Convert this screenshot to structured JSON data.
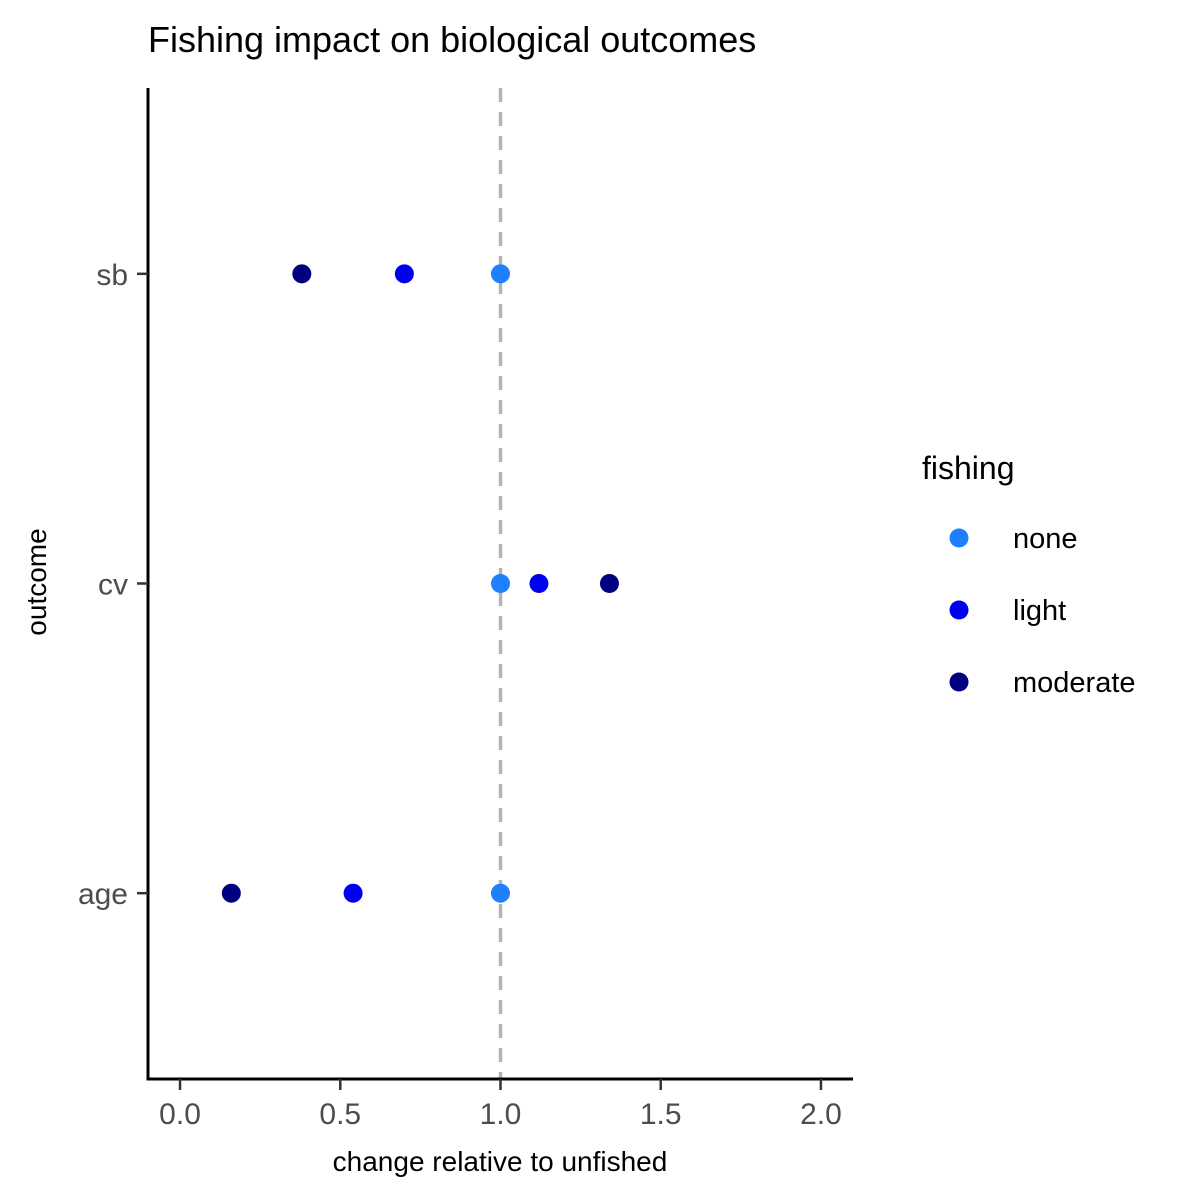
{
  "chart_data": {
    "type": "scatter",
    "title": "Fishing impact on biological outcomes",
    "xlabel": "change relative to unfished",
    "ylabel": "outcome",
    "xlim": [
      -0.1,
      2.1
    ],
    "xticks": [
      0.0,
      0.5,
      1.0,
      1.5,
      2.0
    ],
    "xtick_labels": [
      "0.0",
      "0.5",
      "1.0",
      "1.5",
      "2.0"
    ],
    "categories": [
      "age",
      "cv",
      "sb"
    ],
    "reference_line": {
      "x": 1.0,
      "style": "dashed",
      "color": "#b3b3b3"
    },
    "grid": false,
    "legend": {
      "title": "fishing",
      "placement": "right",
      "entries": [
        "none",
        "light",
        "moderate"
      ]
    },
    "series": [
      {
        "name": "none",
        "color": "#1e7fff",
        "points": [
          {
            "y": "sb",
            "x": 1.0
          },
          {
            "y": "cv",
            "x": 1.0
          },
          {
            "y": "age",
            "x": 1.0
          }
        ]
      },
      {
        "name": "light",
        "color": "#0000f0",
        "points": [
          {
            "y": "sb",
            "x": 0.7
          },
          {
            "y": "cv",
            "x": 1.12
          },
          {
            "y": "age",
            "x": 0.54
          }
        ]
      },
      {
        "name": "moderate",
        "color": "#000080",
        "points": [
          {
            "y": "sb",
            "x": 0.38
          },
          {
            "y": "cv",
            "x": 1.34
          },
          {
            "y": "age",
            "x": 0.16
          }
        ]
      }
    ]
  }
}
